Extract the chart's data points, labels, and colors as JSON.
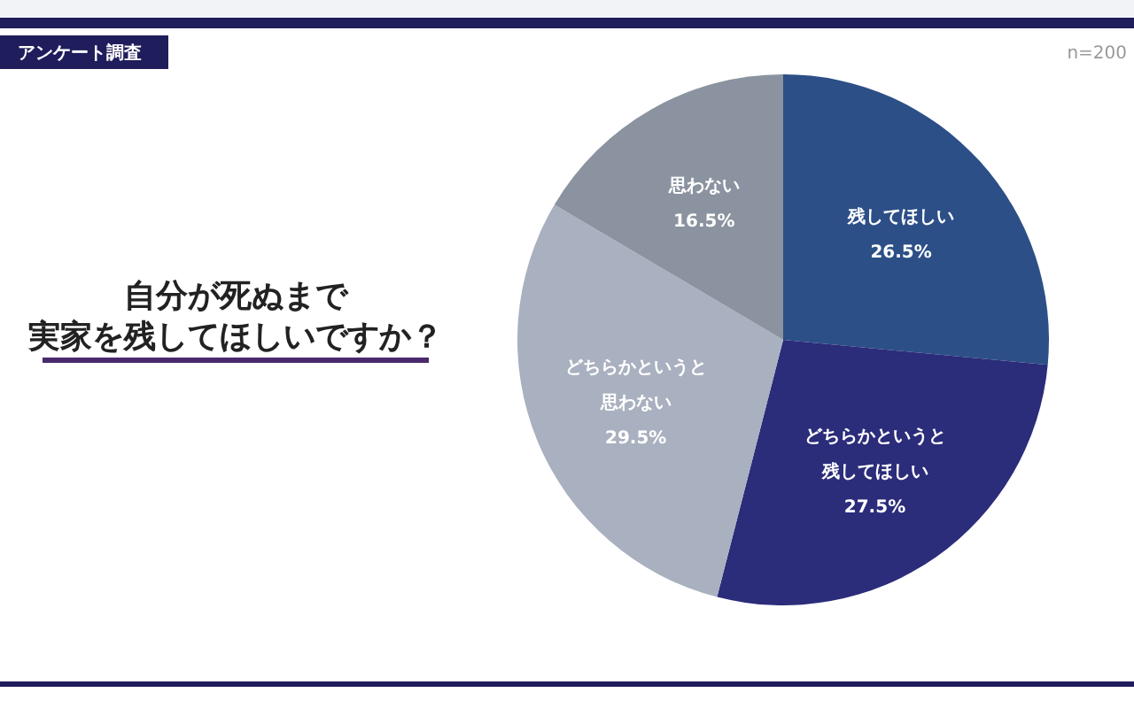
{
  "chart_data": {
    "type": "pie",
    "title": "自分が死ぬまで",
    "subtitle": "実家を残してほしいですか？",
    "categories": [
      "残してほしい",
      "どちらかというと残してほしい",
      "どちらかというと思わない",
      "思わない"
    ],
    "values": [
      26.5,
      27.5,
      29.5,
      16.5
    ],
    "colors": [
      "#2c4f87",
      "#2b2c7a",
      "#a9b0bf",
      "#8a939f"
    ],
    "value_labels": [
      "26.5%",
      "27.5%",
      "29.5%",
      "16.5%"
    ],
    "annotations": [
      "アンケート調査",
      "n=200"
    ]
  }
}
